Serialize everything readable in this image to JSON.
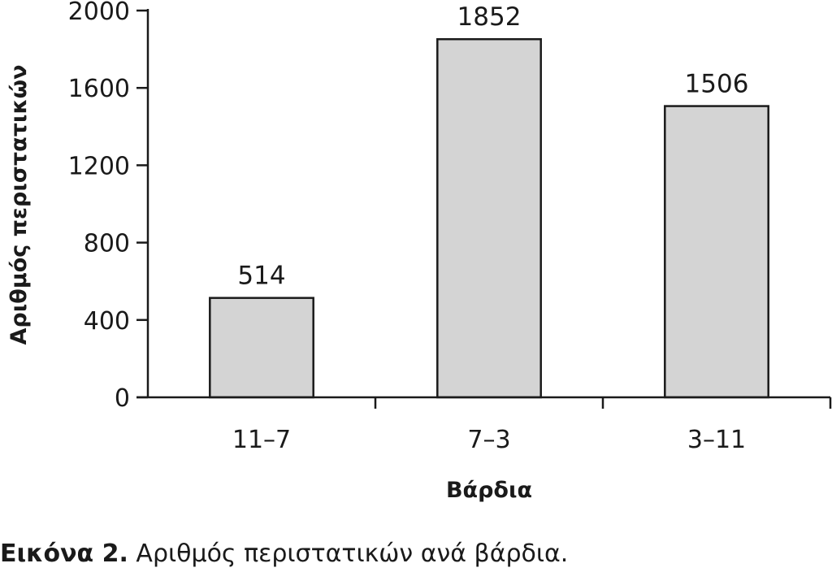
{
  "chart_data": {
    "type": "bar",
    "categories": [
      "11–7",
      "7–3",
      "3–11"
    ],
    "values": [
      514,
      1852,
      1506
    ],
    "data_labels": [
      "514",
      "1852",
      "1506"
    ],
    "xlabel": "Βάρδια",
    "ylabel": "Αριθμός περιστατικών",
    "ylim": [
      0,
      2000
    ],
    "yticks": [
      0,
      400,
      800,
      1200,
      1600,
      2000
    ],
    "grid": false,
    "legend": "none",
    "bar_color": "#d4d4d4",
    "bar_edge_color": "#1a1a1a"
  },
  "caption": {
    "label": "Εικόνα 2.",
    "text": "Αριθμός περιστατικών ανά βάρδια."
  }
}
